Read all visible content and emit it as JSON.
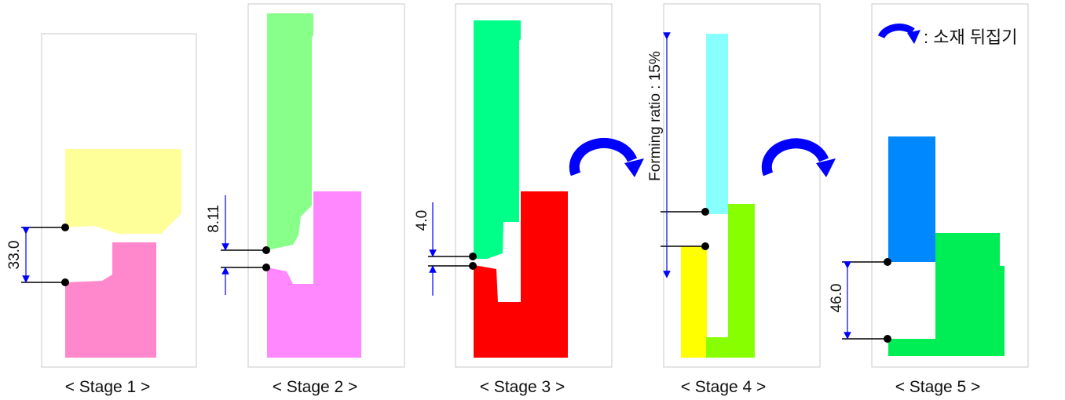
{
  "legend": {
    "text": ": 소재 뒤집기",
    "icon": "flip-arrow-icon"
  },
  "colors": {
    "arrow": "#0000ff",
    "stage1_upper": "#ffff99",
    "stage1_lower": "#ff88cc",
    "stage2_upper": "#88ff88",
    "stage2_lower": "#ff88ff",
    "stage3_upper": "#00ff88",
    "stage3_lower": "#ff0000",
    "stage4_upper": "#88ffff",
    "stage4_left": "#ffff00",
    "stage4_right": "#88ff00",
    "stage5_upper": "#0088ff",
    "stage5_lower": "#00ee55"
  },
  "stages": [
    {
      "caption": "< Stage 1 >",
      "dimension": "33.0"
    },
    {
      "caption": "< Stage 2 >",
      "dimension": "8.11"
    },
    {
      "caption": "< Stage 3 >",
      "dimension": "4.0"
    },
    {
      "caption": "< Stage 4 >",
      "dimension": "Forming ratio : 15%"
    },
    {
      "caption": "< Stage 5 >",
      "dimension": "46.0"
    }
  ]
}
